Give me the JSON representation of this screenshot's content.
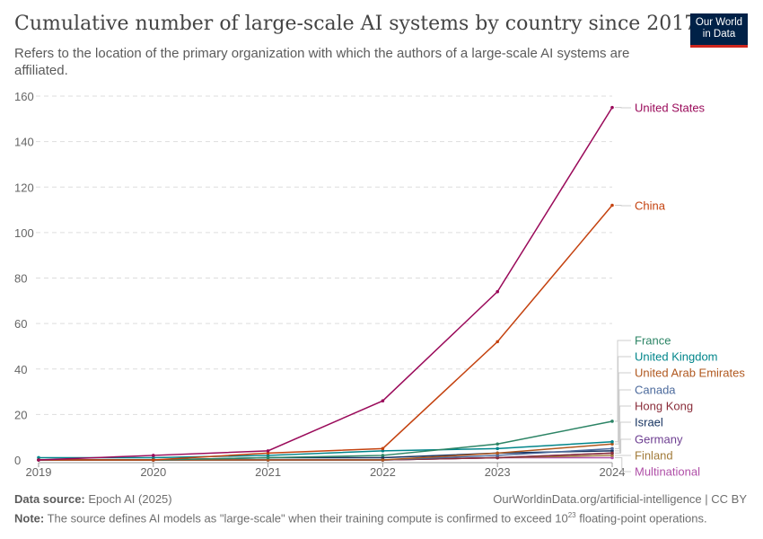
{
  "title": "Cumulative number of large-scale AI systems by country since 2017",
  "subtitle": "Refers to the location of the primary organization with which the authors of a large-scale AI systems are affiliated.",
  "logo": {
    "line1": "Our World",
    "line2": "in Data"
  },
  "footer": {
    "source_label": "Data source:",
    "source": "Epoch AI (2025)",
    "url": "OurWorldinData.org/artificial-intelligence | CC BY",
    "note_label": "Note:",
    "note_pre": "The source defines AI models as \"large-scale\" when their training compute is confirmed to exceed 10",
    "note_sup": "23",
    "note_post": " floating-point operations."
  },
  "chart_data": {
    "type": "line",
    "x": [
      2019,
      2020,
      2021,
      2022,
      2023,
      2024
    ],
    "ylim": [
      0,
      160
    ],
    "yticks": [
      0,
      20,
      40,
      60,
      80,
      100,
      120,
      140,
      160
    ],
    "grid": true,
    "legend": "right-end labels",
    "series": [
      {
        "name": "United States",
        "color": "#9a0a5a",
        "values": [
          0,
          2,
          4,
          26,
          74,
          155
        ]
      },
      {
        "name": "China",
        "color": "#c4420f",
        "values": [
          0,
          0,
          3,
          5,
          52,
          112
        ]
      },
      {
        "name": "France",
        "color": "#2c8465",
        "values": [
          0,
          0,
          1,
          2,
          7,
          17
        ]
      },
      {
        "name": "United Kingdom",
        "color": "#00858a",
        "values": [
          1,
          1,
          2,
          4,
          5,
          8
        ]
      },
      {
        "name": "United Arab Emirates",
        "color": "#b0581f",
        "values": [
          0,
          0,
          0,
          0,
          3,
          7
        ]
      },
      {
        "name": "Canada",
        "color": "#4c6a9c",
        "values": [
          0,
          0,
          0,
          0,
          2,
          5
        ]
      },
      {
        "name": "Hong Kong",
        "color": "#8a2d3a",
        "values": [
          0,
          0,
          0,
          0,
          1,
          3
        ]
      },
      {
        "name": "Israel",
        "color": "#13305e",
        "values": [
          0,
          0,
          1,
          1,
          3,
          4
        ]
      },
      {
        "name": "Germany",
        "color": "#6d3e91",
        "values": [
          0,
          0,
          0,
          0,
          1,
          3
        ]
      },
      {
        "name": "Finland",
        "color": "#a27b3a",
        "values": [
          0,
          0,
          0,
          0,
          1,
          2
        ]
      },
      {
        "name": "Multinational",
        "color": "#b050a8",
        "values": [
          0,
          0,
          0,
          0,
          1,
          1
        ]
      }
    ]
  }
}
